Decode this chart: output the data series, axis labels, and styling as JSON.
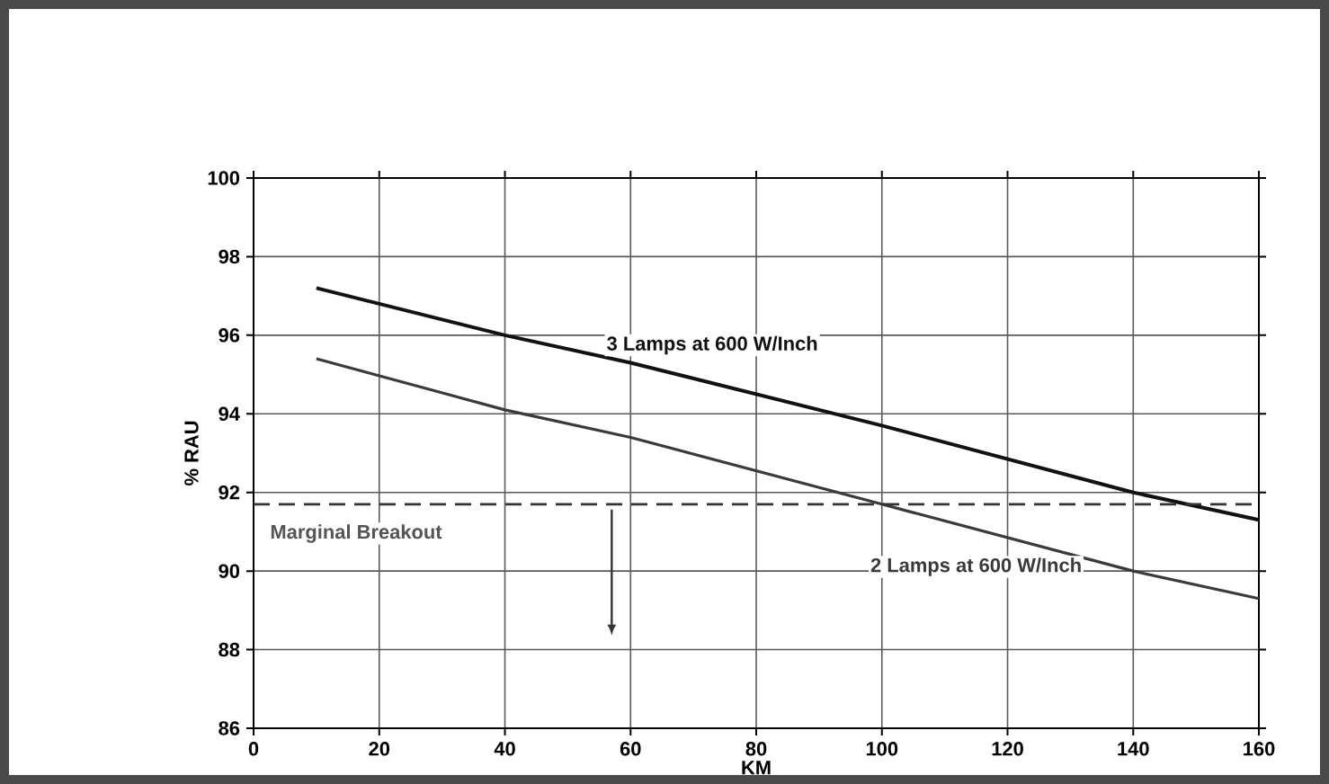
{
  "chart_data": {
    "type": "line",
    "xlabel": "KM",
    "ylabel": "% RAU",
    "xlim": [
      0,
      160
    ],
    "xticks": [
      0,
      20,
      40,
      60,
      80,
      100,
      120,
      140,
      160
    ],
    "ylim": [
      86,
      100
    ],
    "yticks": [
      86,
      88,
      90,
      92,
      94,
      96,
      98,
      100
    ],
    "grid": true,
    "legend": false,
    "marker": "none",
    "line_style": "solid",
    "series": [
      {
        "name": "3 Lamps at 600 W/Inch",
        "color": "#111111",
        "x": [
          10,
          40,
          60,
          100,
          140,
          160
        ],
        "values": [
          97.2,
          96.0,
          95.3,
          93.7,
          92.0,
          91.3
        ]
      },
      {
        "name": "2 Lamps at 600 W/Inch",
        "color": "#3a3a3a",
        "x": [
          10,
          40,
          60,
          100,
          140,
          160
        ],
        "values": [
          95.4,
          94.1,
          93.4,
          91.7,
          90.0,
          89.3
        ]
      }
    ],
    "ref_lines": [
      {
        "axis": "y",
        "value": 91.7,
        "label": "Marginal Breakout",
        "color": "#333333",
        "line_style": "dashed"
      }
    ]
  }
}
